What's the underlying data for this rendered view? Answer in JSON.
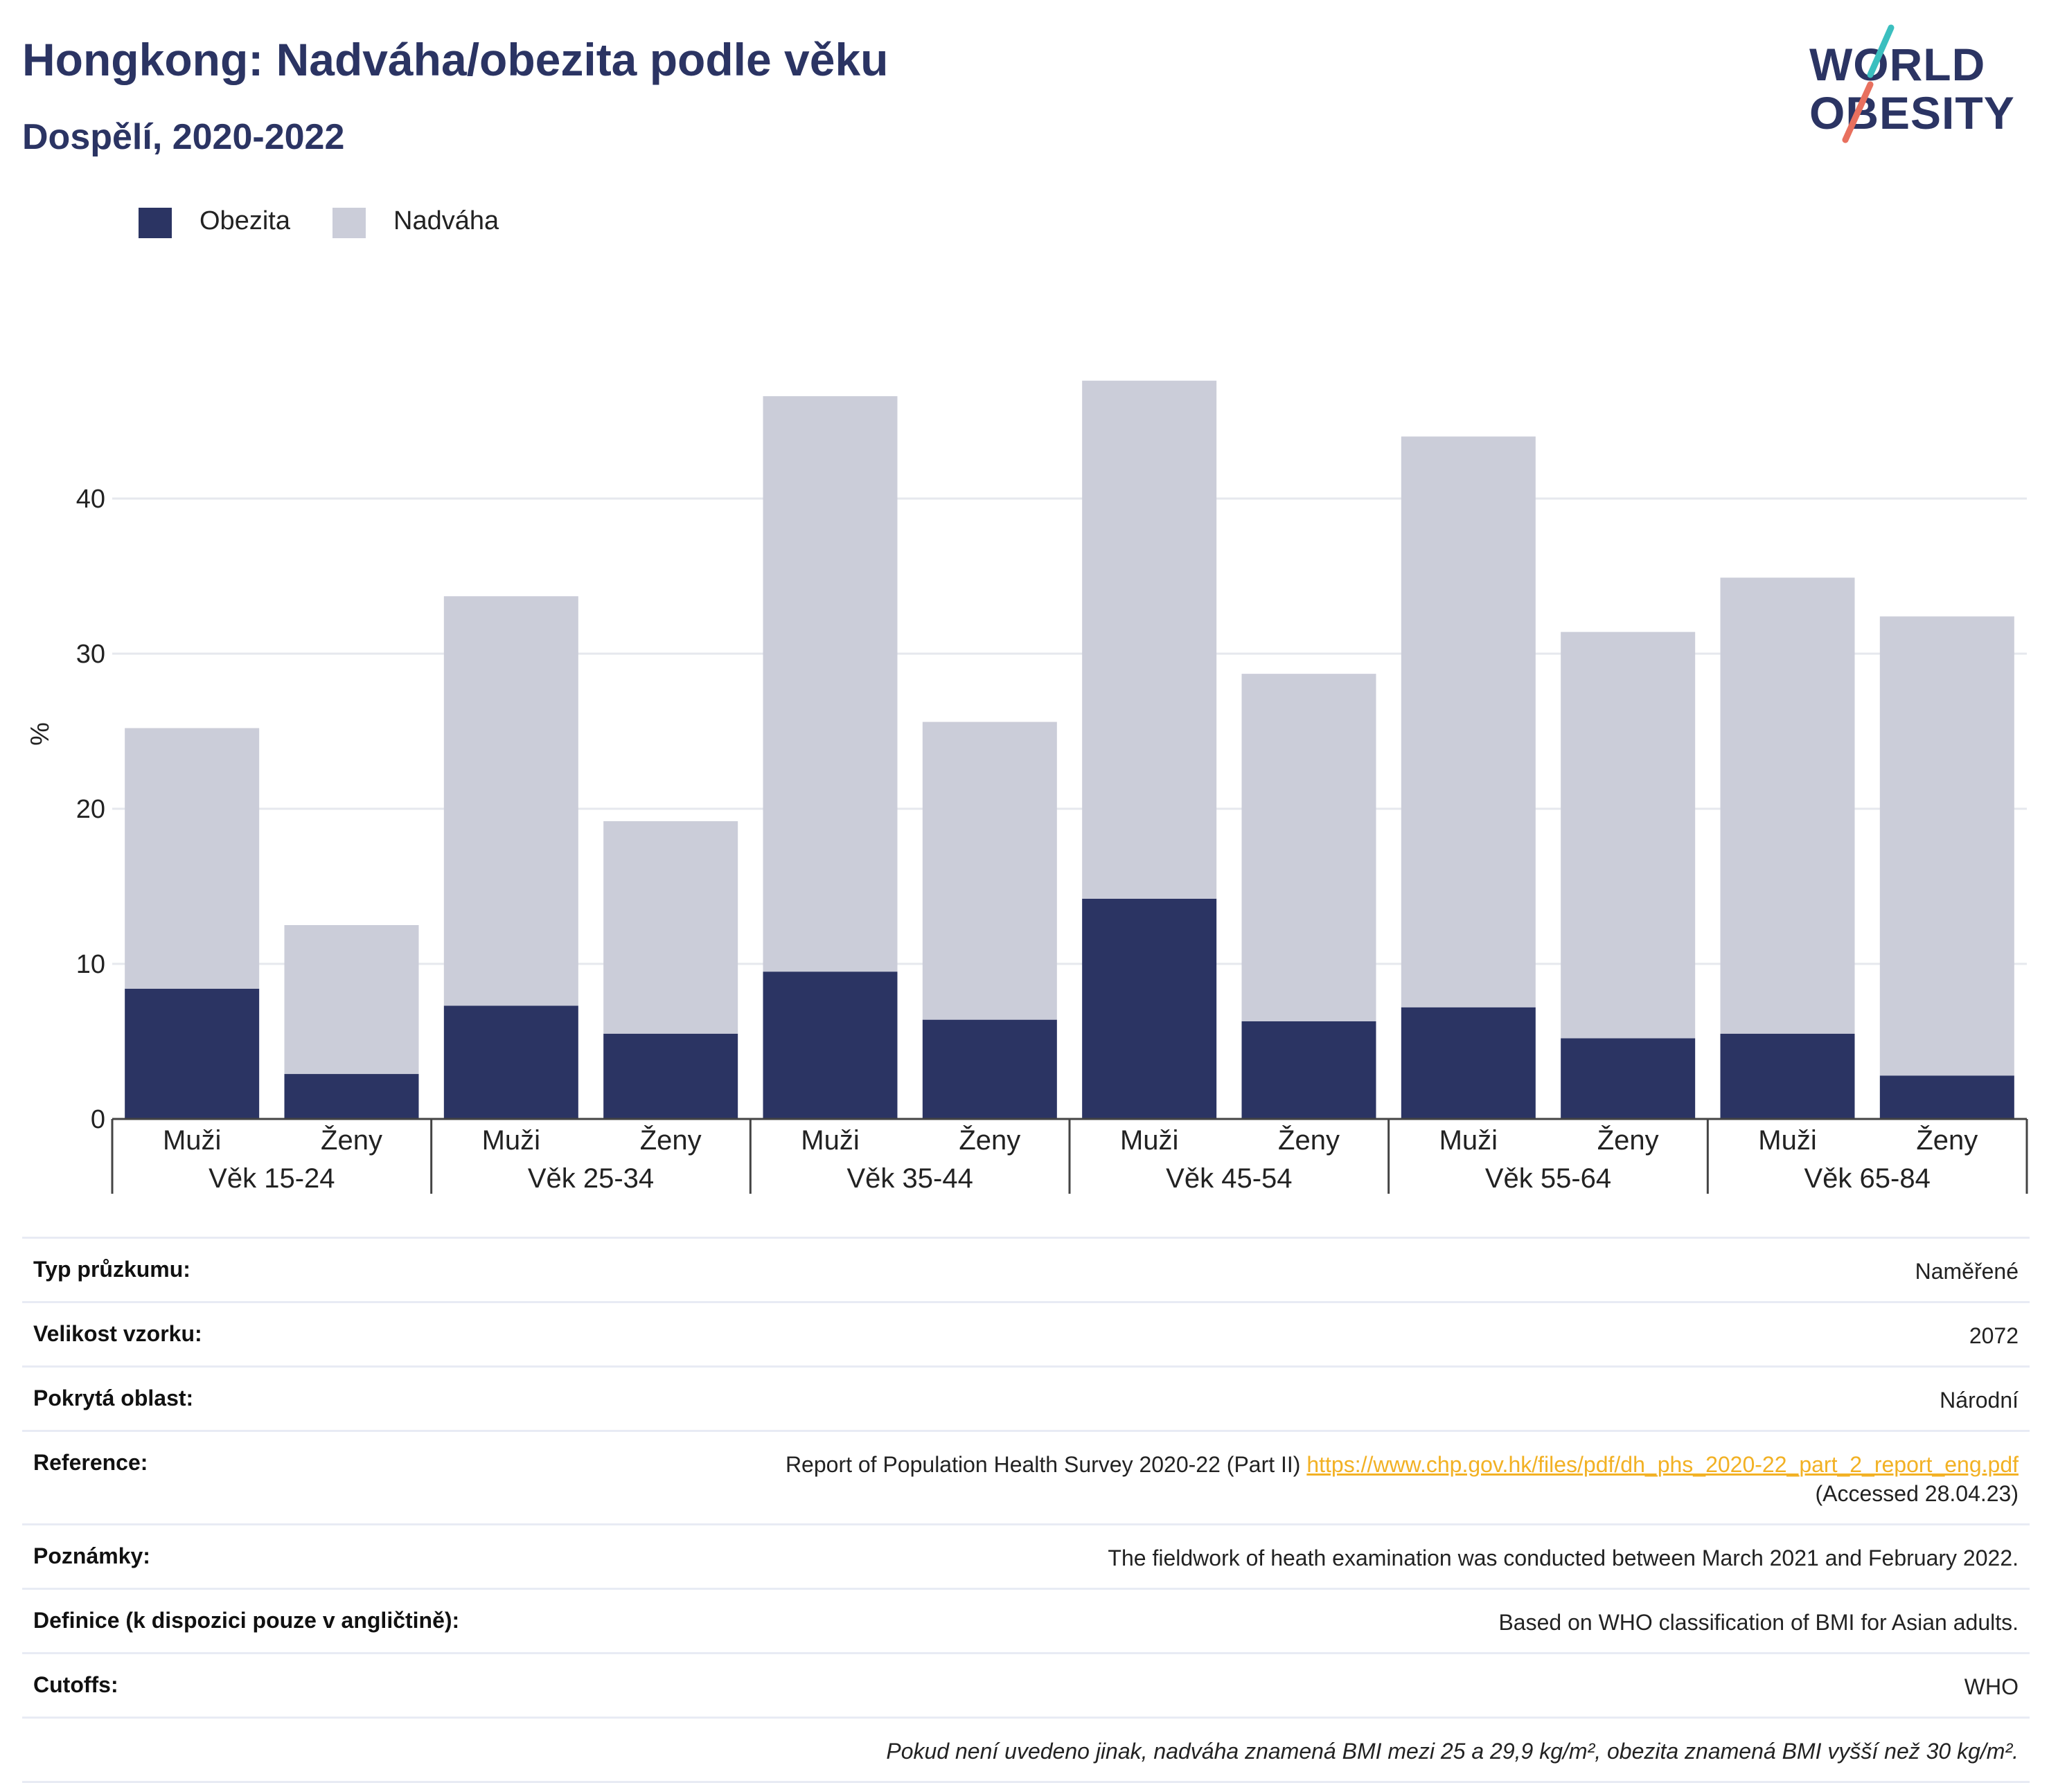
{
  "header": {
    "title": "Hongkong: Nadváha/obezita podle věku",
    "subtitle": "Dospělí, 2020-2022"
  },
  "logo": {
    "line1": "WORLD",
    "line2": "OBESITY",
    "colors": {
      "text": "#2b3463",
      "slash_teal": "#3bbfbf",
      "slash_coral": "#e8705e"
    }
  },
  "legend": [
    {
      "label": "Obezita",
      "color": "#2b3463"
    },
    {
      "label": "Nadváha",
      "color": "#cbcdd9"
    }
  ],
  "chart_data": {
    "type": "bar",
    "stacked": true,
    "ylabel": "%",
    "ylim": [
      0,
      50
    ],
    "yticks": [
      0,
      10,
      20,
      30,
      40
    ],
    "grid": true,
    "legend_position": "top-left",
    "groups": [
      "Věk 15-24",
      "Věk 25-34",
      "Věk 35-44",
      "Věk 45-54",
      "Věk 55-64",
      "Věk 65-84"
    ],
    "sub_categories": [
      "Muži",
      "Ženy"
    ],
    "series": [
      {
        "name": "Obezita",
        "color": "#2b3463",
        "values": [
          8.4,
          2.9,
          7.3,
          5.5,
          9.5,
          6.4,
          14.2,
          6.3,
          7.2,
          5.2,
          5.5,
          2.8
        ]
      },
      {
        "name": "Nadváha",
        "color": "#cbcdd9",
        "values": [
          16.8,
          9.6,
          26.4,
          13.7,
          37.1,
          19.2,
          33.4,
          22.4,
          36.8,
          26.2,
          29.4,
          29.6
        ]
      }
    ],
    "totals": [
      25.2,
      12.5,
      33.7,
      19.2,
      46.6,
      25.6,
      47.6,
      28.7,
      44.0,
      31.4,
      34.9,
      32.4
    ]
  },
  "info": {
    "rows": [
      {
        "label": "Typ průzkumu:",
        "value": "Naměřené"
      },
      {
        "label": "Velikost vzorku:",
        "value": "2072"
      },
      {
        "label": "Pokrytá oblast:",
        "value": "Národní"
      },
      {
        "label": "Reference:",
        "value": "Report of Population Health Survey 2020-22 (Part II)",
        "link": "https://www.chp.gov.hk/files/pdf/dh_phs_2020-22_part_2_report_eng.pdf",
        "value2": "(Accessed 28.04.23)"
      },
      {
        "label": "Poznámky:",
        "value": "The fieldwork of heath examination was conducted between March 2021 and February 2022."
      },
      {
        "label": "Definice (k dispozici pouze v angličtině):",
        "value": "Based on WHO classification of BMI for Asian adults."
      },
      {
        "label": "Cutoffs:",
        "value": "WHO"
      }
    ],
    "note": "Pokud není uvedeno jinak, nadváha znamená BMI mezi 25 a 29,9 kg/m², obezita znamená BMI vyšší než 30 kg/m²."
  }
}
